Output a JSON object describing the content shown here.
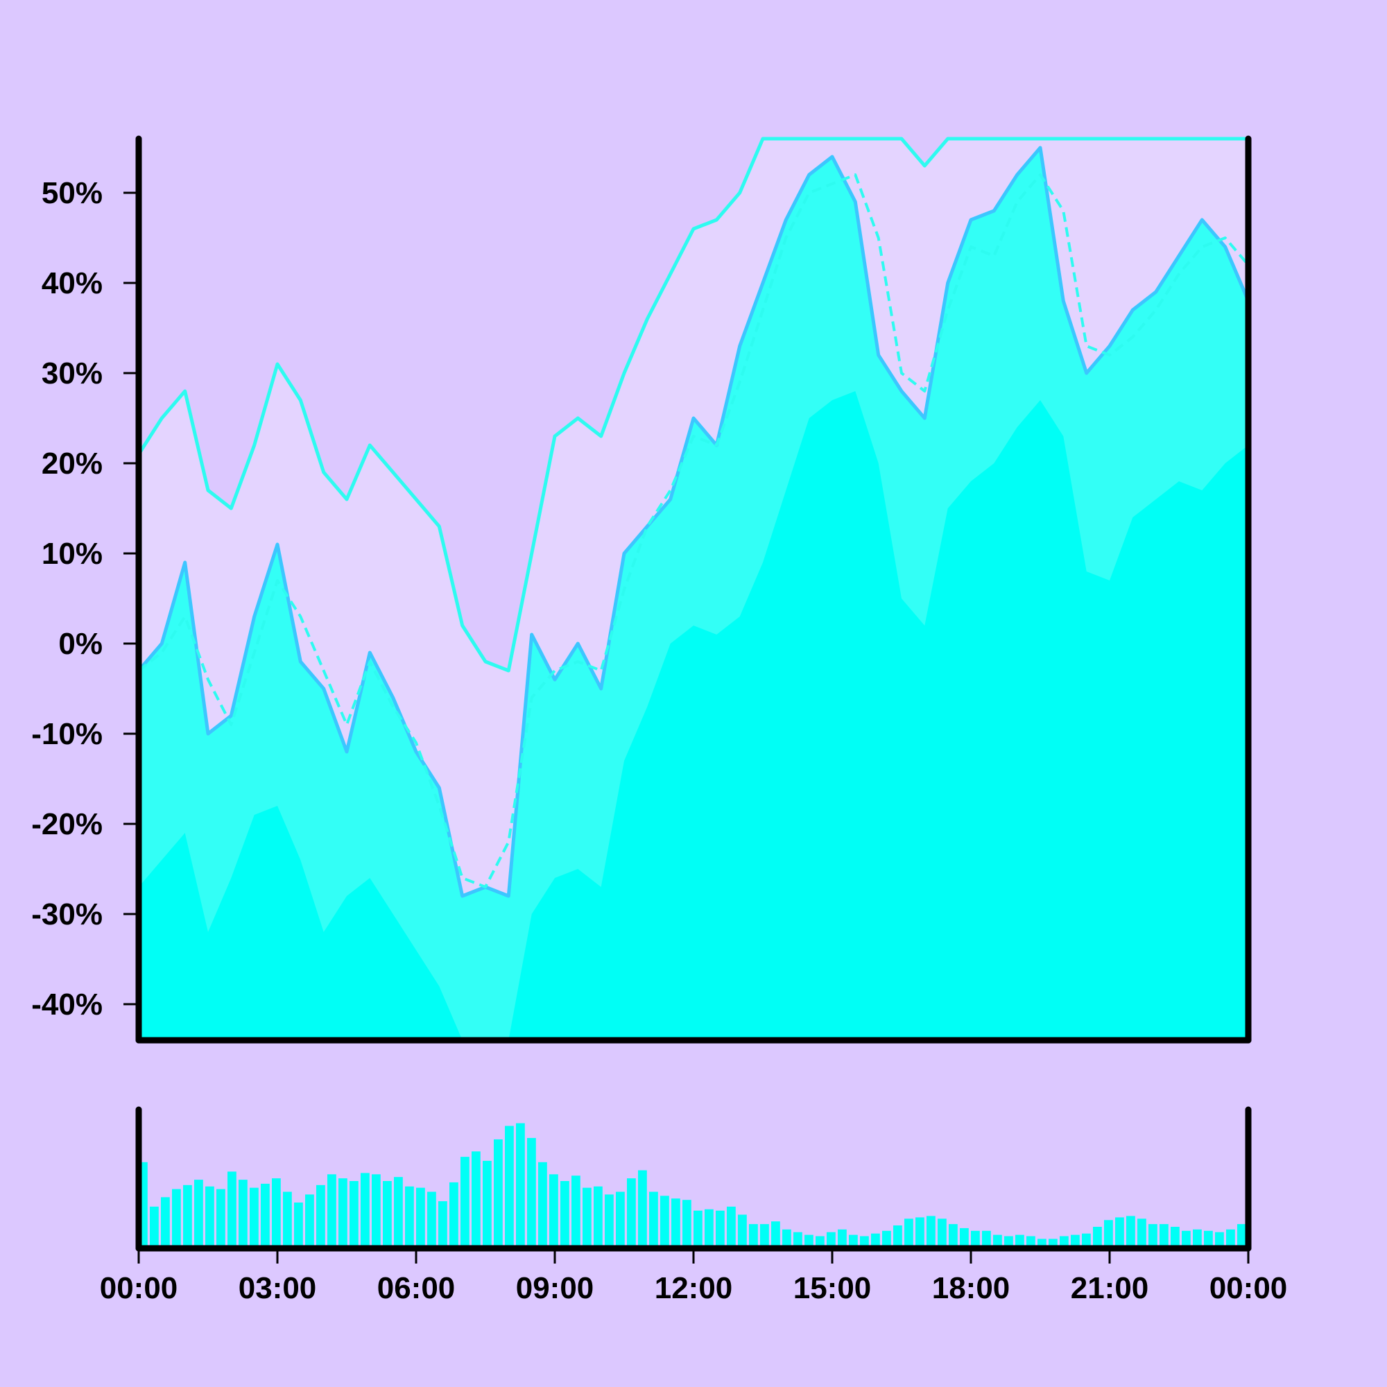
{
  "colors": {
    "background": "#dcc8ff",
    "plot_band": "#e4d4ff",
    "fill_bright": "#00fff6",
    "fill_mid": "#33fff6",
    "price_line": "#3cc6ff",
    "average_line": "#2efbf0",
    "axis": "#000000",
    "volume": "#00fff6"
  },
  "chart_data": [
    {
      "type": "area",
      "ylim": [
        -44,
        56
      ],
      "y_ticks": [
        {
          "value": 50,
          "label": "50%"
        },
        {
          "value": 40,
          "label": "40%"
        },
        {
          "value": 30,
          "label": "30%"
        },
        {
          "value": 20,
          "label": "20%"
        },
        {
          "value": 10,
          "label": "10%"
        },
        {
          "value": 0,
          "label": "0%"
        },
        {
          "value": -10,
          "label": "-10%"
        },
        {
          "value": -20,
          "label": "-20%"
        },
        {
          "value": -30,
          "label": "-30%"
        },
        {
          "value": -40,
          "label": "-40%"
        }
      ],
      "x_hours": [
        0,
        0.5,
        1,
        1.5,
        2,
        2.5,
        3,
        3.5,
        4,
        4.5,
        5,
        5.5,
        6,
        6.5,
        7,
        7.5,
        8,
        8.5,
        9,
        9.5,
        10,
        10.5,
        11,
        11.5,
        12,
        12.5,
        13,
        13.5,
        14,
        14.5,
        15,
        15.5,
        16,
        16.5,
        17,
        17.5,
        18,
        18.5,
        19,
        19.5,
        20,
        20.5,
        21,
        21.5,
        22,
        22.5,
        23,
        23.5,
        24
      ],
      "series": [
        {
          "role": "upper_envelope",
          "values": [
            21,
            25,
            28,
            17,
            15,
            22,
            31,
            27,
            19,
            16,
            22,
            19,
            16,
            13,
            2,
            -2,
            -3,
            10,
            23,
            25,
            23,
            30,
            36,
            41,
            46,
            47,
            50,
            56,
            56,
            56,
            56,
            56,
            56,
            56,
            53,
            56,
            56,
            56,
            56,
            56,
            56,
            56,
            56,
            56,
            56,
            56,
            56,
            56,
            56
          ]
        },
        {
          "role": "price",
          "values": [
            -3,
            0,
            9,
            -10,
            -8,
            3,
            11,
            -2,
            -5,
            -12,
            -1,
            -6,
            -12,
            -16,
            -28,
            -27,
            -28,
            1,
            -4,
            0,
            -5,
            10,
            13,
            16,
            25,
            22,
            33,
            40,
            47,
            52,
            54,
            49,
            32,
            28,
            25,
            40,
            47,
            48,
            52,
            55,
            38,
            30,
            33,
            37,
            39,
            43,
            47,
            44,
            38
          ]
        },
        {
          "role": "moving_average",
          "values": [
            -3,
            -1,
            3,
            -4,
            -9,
            -1,
            7,
            3,
            -3,
            -9,
            -2,
            -7,
            -11,
            -18,
            -26,
            -27,
            -22,
            -6,
            -3,
            -2,
            -3,
            6,
            13,
            17,
            23,
            22,
            29,
            37,
            45,
            50,
            51,
            52,
            45,
            30,
            28,
            37,
            44,
            43,
            49,
            52,
            48,
            33,
            32,
            34,
            37,
            41,
            44,
            45,
            42
          ]
        },
        {
          "role": "mid_band",
          "values": [
            -27,
            -24,
            -21,
            -32,
            -26,
            -19,
            -18,
            -24,
            -32,
            -28,
            -26,
            -30,
            -34,
            -38,
            -45,
            -45,
            -45,
            -30,
            -26,
            -25,
            -27,
            -13,
            -7,
            0,
            2,
            1,
            3,
            9,
            17,
            25,
            27,
            28,
            20,
            5,
            2,
            15,
            18,
            20,
            24,
            27,
            23,
            8,
            7,
            14,
            16,
            18,
            17,
            20,
            22
          ]
        }
      ]
    },
    {
      "type": "bar",
      "role": "volume",
      "x_range_hours": [
        0,
        24
      ],
      "values": [
        0.64,
        0.31,
        0.38,
        0.44,
        0.47,
        0.51,
        0.46,
        0.44,
        0.57,
        0.51,
        0.45,
        0.48,
        0.52,
        0.42,
        0.34,
        0.4,
        0.47,
        0.55,
        0.52,
        0.5,
        0.56,
        0.55,
        0.5,
        0.53,
        0.46,
        0.45,
        0.42,
        0.35,
        0.49,
        0.68,
        0.72,
        0.65,
        0.81,
        0.91,
        0.93,
        0.82,
        0.64,
        0.55,
        0.5,
        0.54,
        0.45,
        0.46,
        0.4,
        0.42,
        0.52,
        0.58,
        0.42,
        0.39,
        0.37,
        0.36,
        0.28,
        0.29,
        0.28,
        0.31,
        0.25,
        0.18,
        0.18,
        0.2,
        0.14,
        0.12,
        0.1,
        0.09,
        0.12,
        0.14,
        0.1,
        0.09,
        0.11,
        0.13,
        0.17,
        0.22,
        0.23,
        0.24,
        0.22,
        0.18,
        0.15,
        0.13,
        0.13,
        0.1,
        0.09,
        0.1,
        0.09,
        0.07,
        0.07,
        0.09,
        0.1,
        0.11,
        0.16,
        0.21,
        0.23,
        0.24,
        0.22,
        0.18,
        0.18,
        0.16,
        0.13,
        0.14,
        0.13,
        0.12,
        0.14,
        0.18
      ],
      "x_ticks": [
        "00:00",
        "03:00",
        "06:00",
        "09:00",
        "12:00",
        "15:00",
        "18:00",
        "21:00",
        "00:00"
      ]
    }
  ]
}
